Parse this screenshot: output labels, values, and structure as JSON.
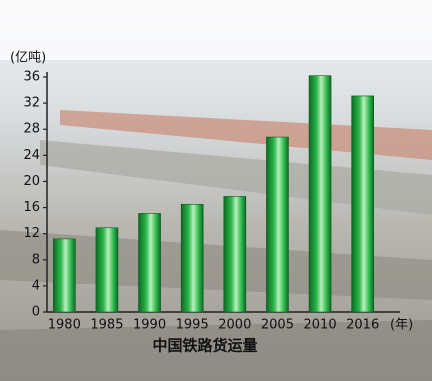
{
  "chart_data": {
    "type": "bar",
    "title": "中国铁路货运量",
    "y_label": "(亿吨)",
    "x_label": "(年)",
    "categories": [
      "1980",
      "1985",
      "1990",
      "1995",
      "2000",
      "2005",
      "2010",
      "2016"
    ],
    "values": [
      11.2,
      12.9,
      15.1,
      16.5,
      17.7,
      26.8,
      36.2,
      33.1
    ],
    "color": "#2fb84c",
    "ylim": [
      0,
      36
    ],
    "yticks": [
      0,
      4,
      8,
      12,
      16,
      20,
      24,
      28,
      32,
      36
    ]
  }
}
